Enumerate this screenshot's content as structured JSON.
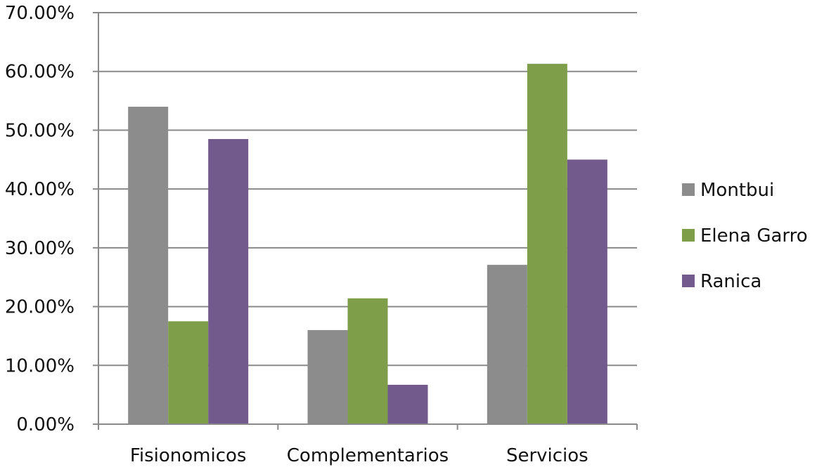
{
  "chart_data": {
    "type": "bar",
    "categories": [
      "Fisionomicos",
      "Complementarios",
      "Servicios"
    ],
    "series": [
      {
        "name": "Montbui",
        "color": "#8c8c8c",
        "values": [
          0.54,
          0.16,
          0.271
        ]
      },
      {
        "name": "Elena Garro",
        "color": "#7f9e49",
        "values": [
          0.175,
          0.214,
          0.613
        ]
      },
      {
        "name": "Ranica",
        "color": "#735a8c",
        "values": [
          0.485,
          0.067,
          0.45
        ]
      }
    ],
    "ylim": [
      0,
      0.7
    ],
    "yticks": [
      0,
      0.1,
      0.2,
      0.3,
      0.4,
      0.5,
      0.6,
      0.7
    ],
    "ytick_labels": [
      "0.00%",
      "10.00%",
      "20.00%",
      "30.00%",
      "40.00%",
      "50.00%",
      "60.00%",
      "70.00%"
    ],
    "grid": true,
    "legend": "right"
  }
}
